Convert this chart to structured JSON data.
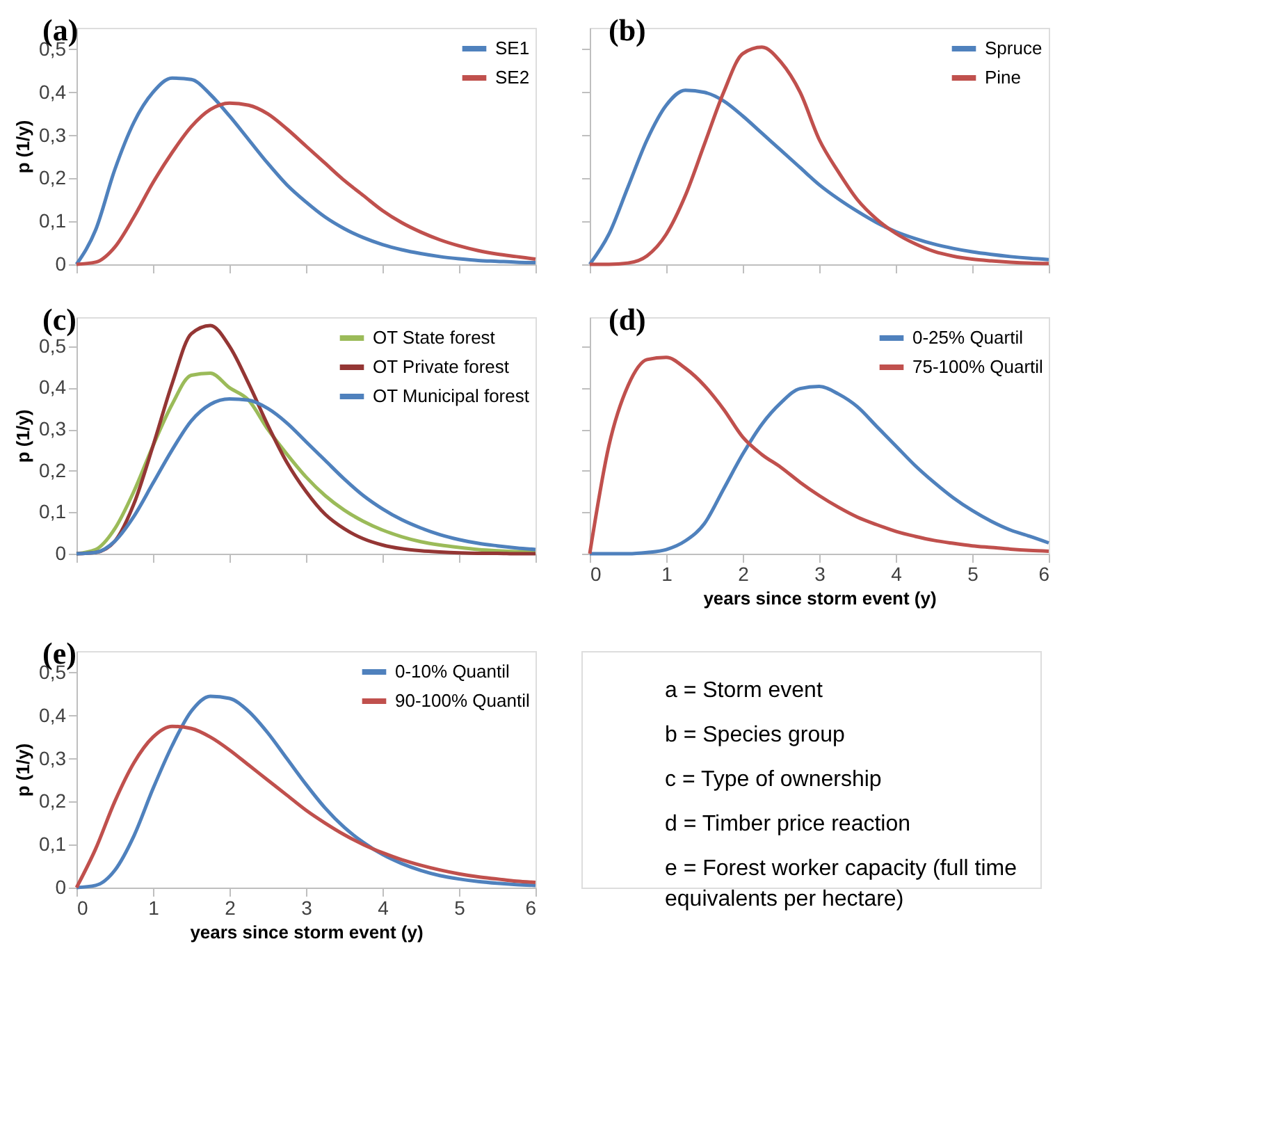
{
  "chart_data": [
    {
      "type": "line",
      "title": "(a)",
      "ylabel": "p (1/y)",
      "xlim": [
        0,
        6
      ],
      "ylim": [
        0,
        0.55
      ],
      "tick_labels": "y",
      "legend": "top right",
      "xticks": [
        {
          "value": 0,
          "label": null
        },
        {
          "value": 1,
          "label": null
        },
        {
          "value": 2,
          "label": null
        },
        {
          "value": 3,
          "label": null
        },
        {
          "value": 4,
          "label": null
        },
        {
          "value": 5,
          "label": null
        },
        {
          "value": 6,
          "label": null
        }
      ],
      "yticks": [
        0,
        {
          "value": 0.1,
          "label": "0,1"
        },
        {
          "value": 0.2,
          "label": "0,2"
        },
        {
          "value": 0.3,
          "label": "0,3"
        },
        {
          "value": 0.4,
          "label": "0,4"
        },
        {
          "value": 0.5,
          "label": "0,5"
        }
      ],
      "x": [
        0,
        0.25,
        0.5,
        0.75,
        1,
        1.25,
        1.5,
        1.75,
        2,
        2.25,
        2.5,
        2.75,
        3,
        3.25,
        3.5,
        3.75,
        4,
        4.25,
        4.5,
        4.75,
        5,
        5.25,
        5.5,
        5.75,
        6
      ],
      "series": [
        {
          "name": "SE1",
          "color": "#4f81bd",
          "values": [
            0,
            0.08,
            0.22,
            0.33,
            0.4,
            0.433,
            0.43,
            0.395,
            0.345,
            0.29,
            0.235,
            0.185,
            0.145,
            0.11,
            0.083,
            0.062,
            0.046,
            0.034,
            0.025,
            0.018,
            0.013,
            0.009,
            0.007,
            0.005,
            0.004
          ]
        },
        {
          "name": "SE2",
          "color": "#c0504d",
          "values": [
            0,
            0.005,
            0.04,
            0.11,
            0.19,
            0.26,
            0.32,
            0.36,
            0.375,
            0.37,
            0.35,
            0.315,
            0.275,
            0.235,
            0.195,
            0.16,
            0.125,
            0.097,
            0.075,
            0.057,
            0.043,
            0.032,
            0.024,
            0.018,
            0.012
          ]
        }
      ]
    },
    {
      "type": "line",
      "title": "(b)",
      "xlim": [
        0,
        6
      ],
      "ylim": [
        0,
        0.55
      ],
      "tick_labels": false,
      "legend": "top right",
      "xticks": [
        {
          "value": 0,
          "label": null
        },
        {
          "value": 1,
          "label": null
        },
        {
          "value": 2,
          "label": null
        },
        {
          "value": 3,
          "label": null
        },
        {
          "value": 4,
          "label": null
        },
        {
          "value": 5,
          "label": null
        },
        {
          "value": 6,
          "label": null
        }
      ],
      "yticks": [
        {
          "value": 0,
          "label": null
        },
        {
          "value": 0.1,
          "label": null
        },
        {
          "value": 0.2,
          "label": null
        },
        {
          "value": 0.3,
          "label": null
        },
        {
          "value": 0.4,
          "label": null
        },
        {
          "value": 0.5,
          "label": null
        }
      ],
      "x": [
        0,
        0.25,
        0.5,
        0.75,
        1,
        1.25,
        1.5,
        1.75,
        2,
        2.25,
        2.5,
        2.75,
        3,
        3.25,
        3.5,
        3.75,
        4,
        4.25,
        4.5,
        4.75,
        5,
        5.25,
        5.5,
        5.75,
        6
      ],
      "series": [
        {
          "name": "Spruce",
          "color": "#4f81bd",
          "values": [
            0,
            0.07,
            0.18,
            0.29,
            0.37,
            0.405,
            0.4,
            0.38,
            0.345,
            0.305,
            0.265,
            0.225,
            0.185,
            0.152,
            0.123,
            0.097,
            0.076,
            0.06,
            0.047,
            0.037,
            0.029,
            0.023,
            0.018,
            0.014,
            0.011
          ]
        },
        {
          "name": "Pine",
          "color": "#c0504d",
          "values": [
            0,
            0,
            0.003,
            0.02,
            0.07,
            0.16,
            0.28,
            0.4,
            0.49,
            0.505,
            0.47,
            0.4,
            0.29,
            0.215,
            0.15,
            0.105,
            0.072,
            0.048,
            0.03,
            0.019,
            0.012,
            0.008,
            0.005,
            0.003,
            0.002
          ]
        }
      ]
    },
    {
      "type": "line",
      "title": "(c)",
      "ylabel": "p (1/y)",
      "xlim": [
        0,
        6
      ],
      "ylim": [
        0,
        0.57
      ],
      "tick_labels": "y",
      "legend": "top right",
      "xticks": [
        {
          "value": 0,
          "label": null
        },
        {
          "value": 1,
          "label": null
        },
        {
          "value": 2,
          "label": null
        },
        {
          "value": 3,
          "label": null
        },
        {
          "value": 4,
          "label": null
        },
        {
          "value": 5,
          "label": null
        },
        {
          "value": 6,
          "label": null
        }
      ],
      "yticks": [
        0,
        {
          "value": 0.1,
          "label": "0,1"
        },
        {
          "value": 0.2,
          "label": "0,2"
        },
        {
          "value": 0.3,
          "label": "0,3"
        },
        {
          "value": 0.4,
          "label": "0,4"
        },
        {
          "value": 0.5,
          "label": "0,5"
        }
      ],
      "x": [
        0,
        0.25,
        0.5,
        0.75,
        1,
        1.25,
        1.5,
        1.75,
        2,
        2.25,
        2.5,
        2.75,
        3,
        3.25,
        3.5,
        3.75,
        4,
        4.25,
        4.5,
        4.75,
        5,
        5.25,
        5.5,
        5.75,
        6
      ],
      "series": [
        {
          "name": "OT State forest",
          "color": "#9bbb59",
          "values": [
            0,
            0.01,
            0.06,
            0.15,
            0.26,
            0.36,
            0.43,
            0.435,
            0.4,
            0.37,
            0.3,
            0.24,
            0.185,
            0.14,
            0.105,
            0.078,
            0.057,
            0.041,
            0.029,
            0.021,
            0.015,
            0.01,
            0.007,
            0.005,
            0.004
          ]
        },
        {
          "name": "OT Private forest",
          "color": "#943634",
          "values": [
            0,
            0.003,
            0.03,
            0.12,
            0.26,
            0.41,
            0.53,
            0.55,
            0.5,
            0.41,
            0.31,
            0.22,
            0.15,
            0.095,
            0.06,
            0.036,
            0.021,
            0.012,
            0.007,
            0.004,
            0.002,
            0.001,
            0.001,
            0,
            0
          ]
        },
        {
          "name": "OT Municipal forest",
          "color": "#4f81bd",
          "values": [
            0,
            0.003,
            0.03,
            0.09,
            0.17,
            0.25,
            0.32,
            0.36,
            0.373,
            0.37,
            0.35,
            0.315,
            0.27,
            0.225,
            0.18,
            0.14,
            0.108,
            0.082,
            0.062,
            0.046,
            0.034,
            0.025,
            0.019,
            0.014,
            0.01
          ]
        }
      ]
    },
    {
      "type": "line",
      "title": "(d)",
      "xlabel": "years since storm event  (y)",
      "xlim": [
        0,
        6
      ],
      "ylim": [
        0,
        0.57
      ],
      "tick_labels": "x",
      "legend": "top right",
      "xticks": [
        0,
        1,
        2,
        3,
        4,
        5,
        6
      ],
      "yticks": [
        {
          "value": 0,
          "label": null
        },
        {
          "value": 0.1,
          "label": null
        },
        {
          "value": 0.2,
          "label": null
        },
        {
          "value": 0.3,
          "label": null
        },
        {
          "value": 0.4,
          "label": null
        },
        {
          "value": 0.5,
          "label": null
        }
      ],
      "x": [
        0,
        0.25,
        0.5,
        0.75,
        1,
        1.25,
        1.5,
        1.75,
        2,
        2.25,
        2.5,
        2.75,
        3,
        3.25,
        3.5,
        3.75,
        4,
        4.25,
        4.5,
        4.75,
        5,
        5.25,
        5.5,
        5.75,
        6
      ],
      "series": [
        {
          "name": "0-25% Quartil",
          "color": "#4f81bd",
          "values": [
            0,
            0,
            0,
            0.003,
            0.01,
            0.031,
            0.073,
            0.156,
            0.24,
            0.312,
            0.364,
            0.398,
            0.403,
            0.385,
            0.354,
            0.307,
            0.26,
            0.213,
            0.172,
            0.135,
            0.104,
            0.078,
            0.057,
            0.042,
            0.026
          ]
        },
        {
          "name": "75-100% Quartil",
          "color": "#c0504d",
          "values": [
            0,
            0.26,
            0.405,
            0.468,
            0.473,
            0.447,
            0.405,
            0.348,
            0.281,
            0.239,
            0.208,
            0.172,
            0.14,
            0.112,
            0.088,
            0.07,
            0.054,
            0.042,
            0.032,
            0.025,
            0.019,
            0.015,
            0.011,
            0.008,
            0.006
          ]
        }
      ]
    },
    {
      "type": "line",
      "title": "(e)",
      "xlabel": "years since storm event (y)",
      "ylabel": "p (1/y)",
      "xlim": [
        0,
        6
      ],
      "ylim": [
        0,
        0.55
      ],
      "legend": "top right",
      "xticks": [
        0,
        1,
        2,
        3,
        4,
        5,
        6
      ],
      "yticks": [
        0,
        {
          "value": 0.1,
          "label": "0,1"
        },
        {
          "value": 0.2,
          "label": "0,2"
        },
        {
          "value": 0.3,
          "label": "0,3"
        },
        {
          "value": 0.4,
          "label": "0,4"
        },
        {
          "value": 0.5,
          "label": "0,5"
        }
      ],
      "x": [
        0,
        0.25,
        0.5,
        0.75,
        1,
        1.25,
        1.5,
        1.75,
        2,
        2.25,
        2.5,
        2.75,
        3,
        3.25,
        3.5,
        3.75,
        4,
        4.25,
        4.5,
        4.75,
        5,
        5.25,
        5.5,
        5.75,
        6
      ],
      "series": [
        {
          "name": "0-10% Quantil",
          "color": "#4f81bd",
          "values": [
            0,
            0.005,
            0.04,
            0.12,
            0.23,
            0.33,
            0.41,
            0.445,
            0.44,
            0.41,
            0.36,
            0.3,
            0.24,
            0.185,
            0.14,
            0.105,
            0.077,
            0.056,
            0.04,
            0.028,
            0.02,
            0.014,
            0.01,
            0.007,
            0.005
          ]
        },
        {
          "name": "90-100% Quantil",
          "color": "#c0504d",
          "values": [
            0,
            0.09,
            0.2,
            0.29,
            0.35,
            0.375,
            0.37,
            0.35,
            0.32,
            0.285,
            0.25,
            0.215,
            0.18,
            0.15,
            0.123,
            0.1,
            0.081,
            0.065,
            0.052,
            0.041,
            0.032,
            0.025,
            0.02,
            0.015,
            0.012
          ]
        }
      ]
    },
    {
      "type": "other",
      "annotations": [
        "a = Storm event",
        "b = Species group",
        "c = Type of ownership",
        "d = Timber price reaction",
        "e = Forest worker capacity (full time equivalents per hectare)"
      ]
    }
  ]
}
